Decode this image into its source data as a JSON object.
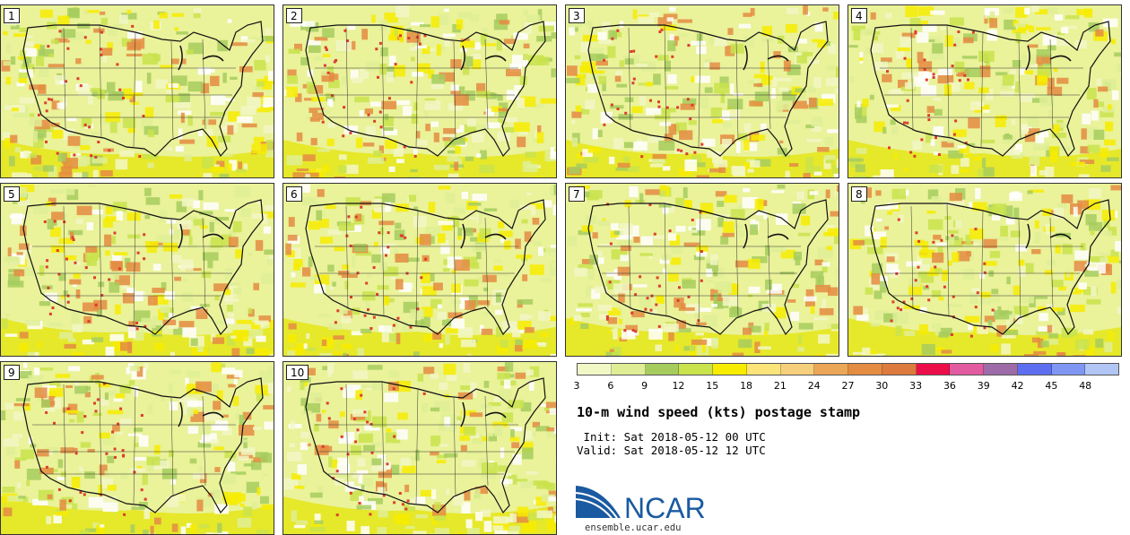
{
  "panels": [
    {
      "label": "1"
    },
    {
      "label": "2"
    },
    {
      "label": "3"
    },
    {
      "label": "4"
    },
    {
      "label": "5"
    },
    {
      "label": "6"
    },
    {
      "label": "7"
    },
    {
      "label": "8"
    },
    {
      "label": "9"
    },
    {
      "label": "10"
    }
  ],
  "colorbar": {
    "ticks": [
      "3",
      "6",
      "9",
      "12",
      "15",
      "18",
      "21",
      "24",
      "27",
      "30",
      "33",
      "36",
      "39",
      "42",
      "45",
      "48"
    ],
    "colors": [
      "#f2f7c6",
      "#dfee95",
      "#a6cc5e",
      "#c9e34c",
      "#f7ec00",
      "#fbe47a",
      "#f6cf7c",
      "#eca657",
      "#e48c42",
      "#dd7a3d",
      "#ec0e49",
      "#e25ba0",
      "#9d6ca8",
      "#5d6ff0",
      "#7f96f2",
      "#b2c6f6"
    ]
  },
  "title": "10-m wind speed (kts) postage stamp",
  "init_text": " Init: Sat 2018-05-12 00 UTC",
  "valid_text": "Valid: Sat 2018-05-12 12 UTC",
  "logo": {
    "text": "NCAR",
    "url": "ensemble.ucar.edu",
    "brand_color": "#1a5aa0"
  }
}
